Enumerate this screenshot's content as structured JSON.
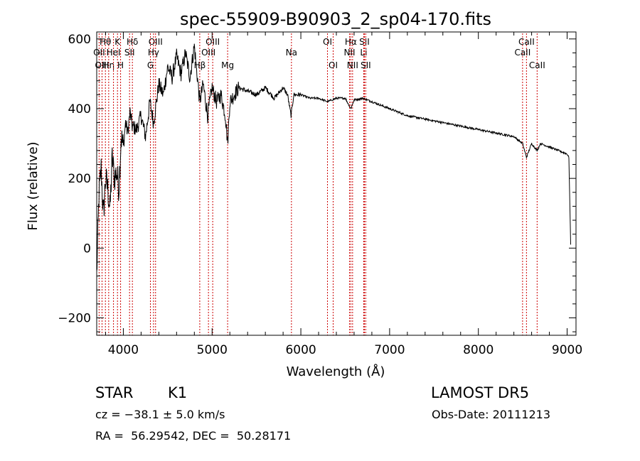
{
  "chart_data": {
    "type": "line",
    "title": "spec-55909-B90903_2_sp04-170.fits",
    "xlabel": "Wavelength (Å)",
    "ylabel": "Flux (relative)",
    "xlim": [
      3700,
      9100
    ],
    "ylim": [
      -250,
      620
    ],
    "x_ticks": [
      4000,
      5000,
      6000,
      7000,
      8000,
      9000
    ],
    "y_ticks": [
      -200,
      0,
      200,
      400,
      600
    ],
    "grid": false,
    "line_color": "#000000",
    "marker_line_color": "#cc0000",
    "series": [
      {
        "x": [
          3700,
          3725,
          3750,
          3775,
          3800,
          3825,
          3850,
          3875,
          3900,
          3925,
          3950,
          3975,
          4000,
          4025,
          4050,
          4075,
          4100,
          4150,
          4200,
          4250,
          4300,
          4340,
          4400,
          4450,
          4500,
          4550,
          4600,
          4650,
          4700,
          4750,
          4800,
          4861,
          4900,
          4950,
          5000,
          5050,
          5100,
          5150,
          5175,
          5200,
          5250,
          5300,
          5400,
          5500,
          5600,
          5700,
          5800,
          5850,
          5890,
          5920,
          6000,
          6100,
          6200,
          6300,
          6400,
          6500,
          6563,
          6600,
          6700,
          6800,
          6900,
          7000,
          7200,
          7400,
          7600,
          7800,
          8000,
          8200,
          8400,
          8498,
          8542,
          8600,
          8662,
          8700,
          8800,
          8900,
          9000,
          9020,
          9040
        ],
        "y": [
          -80,
          150,
          230,
          90,
          200,
          170,
          110,
          260,
          200,
          220,
          170,
          320,
          290,
          360,
          330,
          390,
          350,
          340,
          380,
          320,
          420,
          360,
          470,
          440,
          520,
          490,
          550,
          500,
          560,
          490,
          580,
          420,
          470,
          380,
          460,
          420,
          440,
          380,
          300,
          420,
          440,
          460,
          450,
          440,
          460,
          430,
          460,
          440,
          380,
          440,
          440,
          430,
          430,
          420,
          430,
          430,
          400,
          425,
          430,
          420,
          410,
          400,
          380,
          370,
          360,
          350,
          340,
          330,
          320,
          300,
          260,
          300,
          280,
          300,
          290,
          280,
          270,
          260,
          10
        ]
      }
    ],
    "line_markers": [
      {
        "label": "Hθ",
        "x": 3798,
        "row": 1
      },
      {
        "label": "OII",
        "x": 3727,
        "row": 2
      },
      {
        "label": "OIII",
        "x": 3760,
        "row": 3
      },
      {
        "label": "Hη",
        "x": 3835,
        "row": 3
      },
      {
        "label": "HeI",
        "x": 3889,
        "row": 2
      },
      {
        "label": "K",
        "x": 3934,
        "row": 1
      },
      {
        "label": "SII",
        "x": 4070,
        "row": 2
      },
      {
        "label": "H",
        "x": 3969,
        "row": 3
      },
      {
        "label": "Hδ",
        "x": 4102,
        "row": 1
      },
      {
        "label": "OIII",
        "x": 4363,
        "row": 1
      },
      {
        "label": "Hγ",
        "x": 4340,
        "row": 2
      },
      {
        "label": "G",
        "x": 4305,
        "row": 3
      },
      {
        "label": "OIII",
        "x": 5007,
        "row": 1
      },
      {
        "label": "OIII",
        "x": 4959,
        "row": 2
      },
      {
        "label": "Hβ",
        "x": 4861,
        "row": 3
      },
      {
        "label": "Mg",
        "x": 5175,
        "row": 3
      },
      {
        "label": "Na",
        "x": 5894,
        "row": 2
      },
      {
        "label": "OI",
        "x": 6300,
        "row": 1
      },
      {
        "label": "OI",
        "x": 6364,
        "row": 3
      },
      {
        "label": "Hα",
        "x": 6563,
        "row": 1
      },
      {
        "label": "NII",
        "x": 6548,
        "row": 2
      },
      {
        "label": "NII",
        "x": 6583,
        "row": 3
      },
      {
        "label": "SII",
        "x": 6716,
        "row": 1
      },
      {
        "label": "Li",
        "x": 6708,
        "row": 2
      },
      {
        "label": "SII",
        "x": 6731,
        "row": 3
      },
      {
        "label": "CaII",
        "x": 8542,
        "row": 1
      },
      {
        "label": "CaII",
        "x": 8498,
        "row": 2
      },
      {
        "label": "CaII",
        "x": 8662,
        "row": 3
      }
    ]
  },
  "info": {
    "object_class": "STAR",
    "subclass": "K1",
    "survey": "LAMOST DR5",
    "cz_line": "cz = −38.1 ± 5.0 km/s",
    "obs_date": "Obs-Date: 20111213",
    "coords": "RA =  56.29542, DEC =  50.28171"
  }
}
